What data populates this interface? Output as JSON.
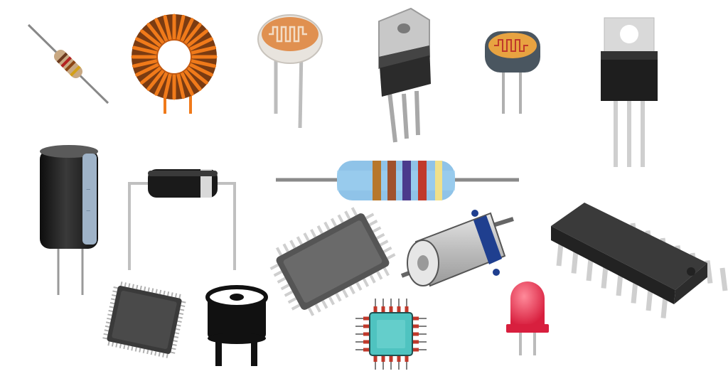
{
  "scene": {
    "background": "#ffffff",
    "components": [
      {
        "name": "small-resistor",
        "type": "axial-resistor",
        "body_color": "#c8a882",
        "band_colors": [
          "#6b3a1f",
          "#b22222",
          "#8b4513",
          "#d4a017"
        ]
      },
      {
        "name": "toroidal-inductor",
        "type": "toroid-coil",
        "wire_color": "#f07a1a",
        "core_color": "#7a3b12"
      },
      {
        "name": "photoresistor-large",
        "type": "ldr",
        "face_color": "#e09050",
        "trace_color": "#f3ddc6",
        "rim_color": "#e8e4de"
      },
      {
        "name": "voltage-regulator-angled",
        "type": "to-220",
        "tab_color": "#c8c8c8",
        "body_color": "#2b2b2b"
      },
      {
        "name": "photoresistor-small",
        "type": "ldr",
        "face_color": "#e8a341",
        "trace_color": "#c0392b",
        "rim_color": "#4a5660"
      },
      {
        "name": "power-transistor",
        "type": "to-220",
        "tab_color": "#d9d9d9",
        "body_color": "#1e1e1e"
      },
      {
        "name": "electrolytic-capacitor",
        "type": "capacitor",
        "body_color": "#1c1c1c",
        "stripe_color": "#9fb3c8"
      },
      {
        "name": "diode",
        "type": "axial-diode",
        "body_color": "#1a1a1a",
        "band_color": "#d9d9d9"
      },
      {
        "name": "large-resistor",
        "type": "axial-resistor",
        "body_color": "#8fc3e8",
        "band_colors": [
          "#b7772b",
          "#a0522d",
          "#4b3a8c",
          "#c0392b",
          "#f0e08a"
        ]
      },
      {
        "name": "qfp-chip-large",
        "type": "qfp",
        "body_color": "#555555",
        "pin_color": "#cfcfcf"
      },
      {
        "name": "dc-motor",
        "type": "motor",
        "can_color": "#c0c0c0",
        "strap_color": "#1f3f8f"
      },
      {
        "name": "dip-ic",
        "type": "dip16",
        "body_color": "#3a3a3a",
        "pin_color": "#cfcfcf"
      },
      {
        "name": "qfp-chip-small",
        "type": "qfp",
        "body_color": "#3a3a3a",
        "pin_color": "#b0b0b0"
      },
      {
        "name": "piezo-buzzer",
        "type": "buzzer",
        "body_color": "#111111"
      },
      {
        "name": "microchip-icon",
        "type": "chip",
        "body_color": "#4fc3c0",
        "pin_color": "#c0392b",
        "wire_color": "#555555"
      },
      {
        "name": "red-led",
        "type": "led",
        "dome_color": "#e8354f",
        "lead_color": "#bbbbbb"
      }
    ]
  }
}
